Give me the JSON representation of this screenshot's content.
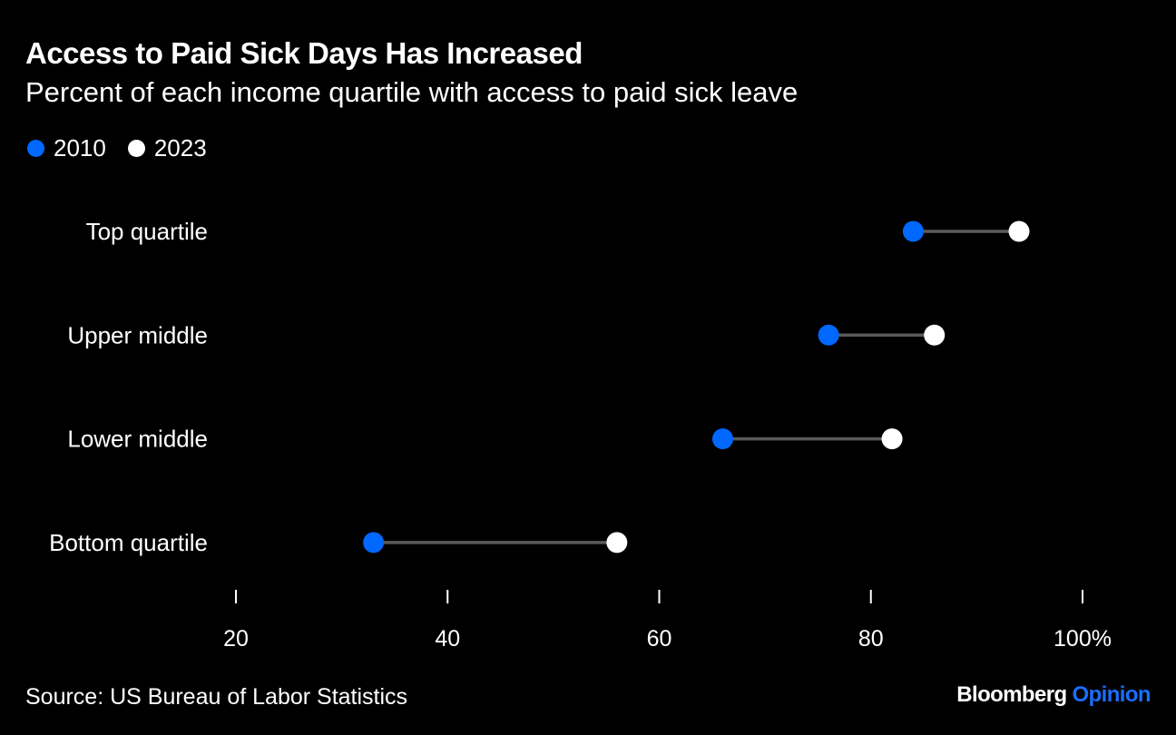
{
  "header": {
    "title": "Access to Paid Sick Days Has Increased",
    "subtitle": "Percent of each income quartile with access to paid sick leave"
  },
  "legend": {
    "items": [
      {
        "label": "2010",
        "color": "#0068ff"
      },
      {
        "label": "2023",
        "color": "#ffffff"
      }
    ]
  },
  "footer": {
    "source": "Source: US Bureau of Labor Statistics",
    "brand_main": "Bloomberg",
    "brand_accent": "Opinion",
    "brand_accent_color": "#1a6eff"
  },
  "chart_data": {
    "type": "dumbbell",
    "title": "Access to Paid Sick Days Has Increased",
    "subtitle": "Percent of each income quartile with access to paid sick leave",
    "categories": [
      "Top quartile",
      "Upper middle",
      "Lower middle",
      "Bottom quartile"
    ],
    "series": [
      {
        "name": "2010",
        "color": "#0068ff",
        "values": [
          84,
          76,
          66,
          33
        ]
      },
      {
        "name": "2023",
        "color": "#ffffff",
        "values": [
          94,
          86,
          82,
          56
        ]
      }
    ],
    "connector_color": "#5a5a5a",
    "xlim": [
      20,
      100
    ],
    "xticks": [
      20,
      40,
      60,
      80,
      100
    ],
    "xtick_labels": [
      "20",
      "40",
      "60",
      "80",
      "100%"
    ],
    "xlabel": "",
    "ylabel": "",
    "grid": false,
    "legend_position": "top-left"
  }
}
